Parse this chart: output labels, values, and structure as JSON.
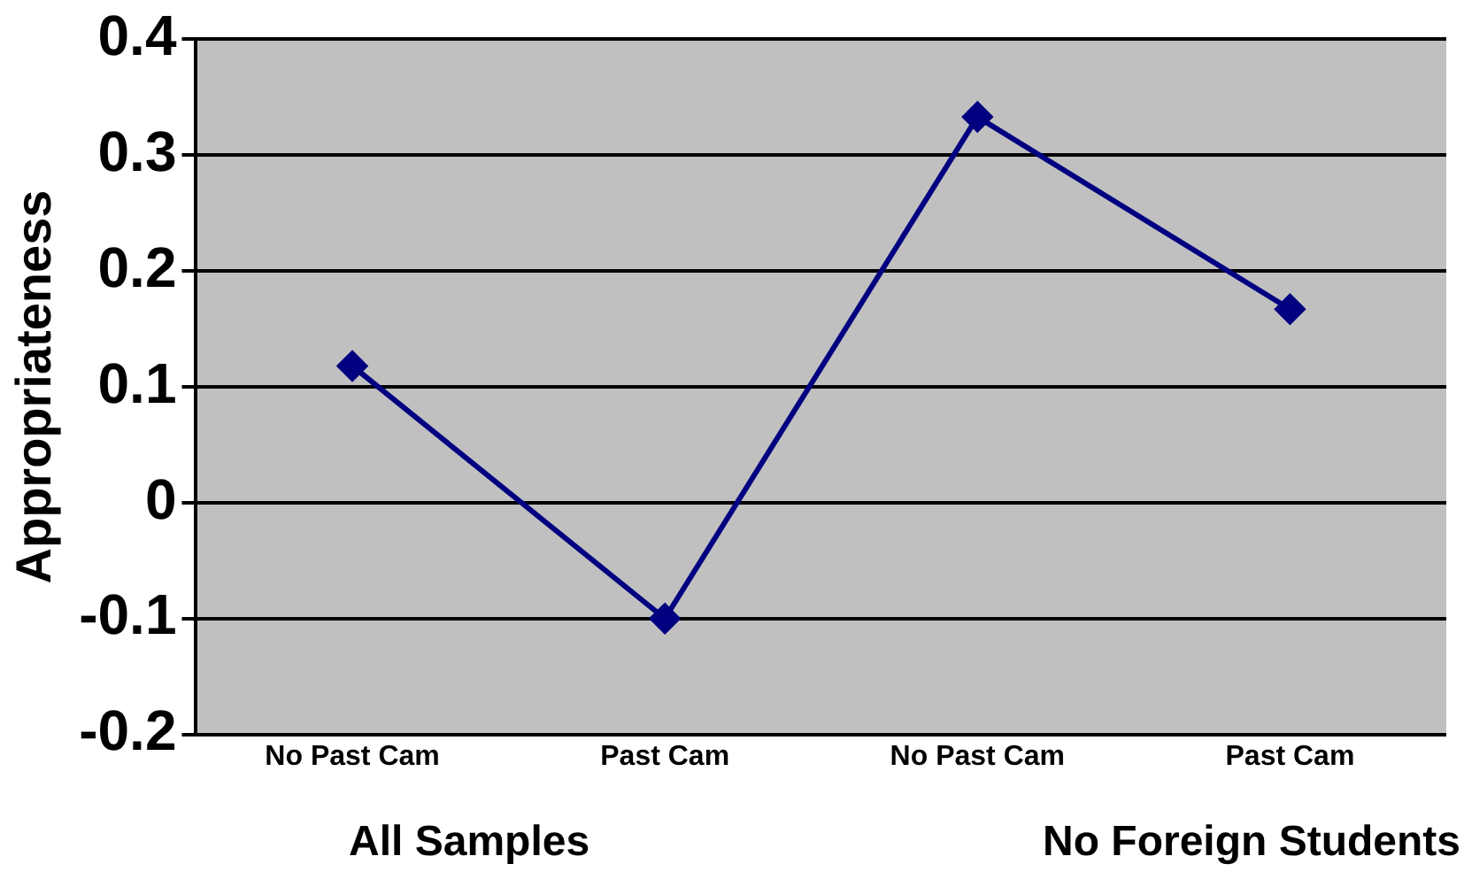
{
  "chart_data": {
    "type": "line",
    "ylabel": "Appropriateness",
    "categories": [
      "No Past Cam",
      "Past Cam",
      "No Past Cam",
      "Past Cam"
    ],
    "series": [
      {
        "color": "#000080",
        "values": [
          0.118,
          -0.1,
          0.333,
          0.167
        ]
      }
    ],
    "ylim": [
      -0.2,
      0.4
    ],
    "yticks": [
      -0.2,
      -0.1,
      0,
      0.1,
      0.2,
      0.3,
      0.4
    ],
    "grid": "y",
    "legend": false,
    "marker": "diamond",
    "line_style": "solid",
    "annotations": [
      "All Samples",
      "No Foreign Students"
    ]
  }
}
